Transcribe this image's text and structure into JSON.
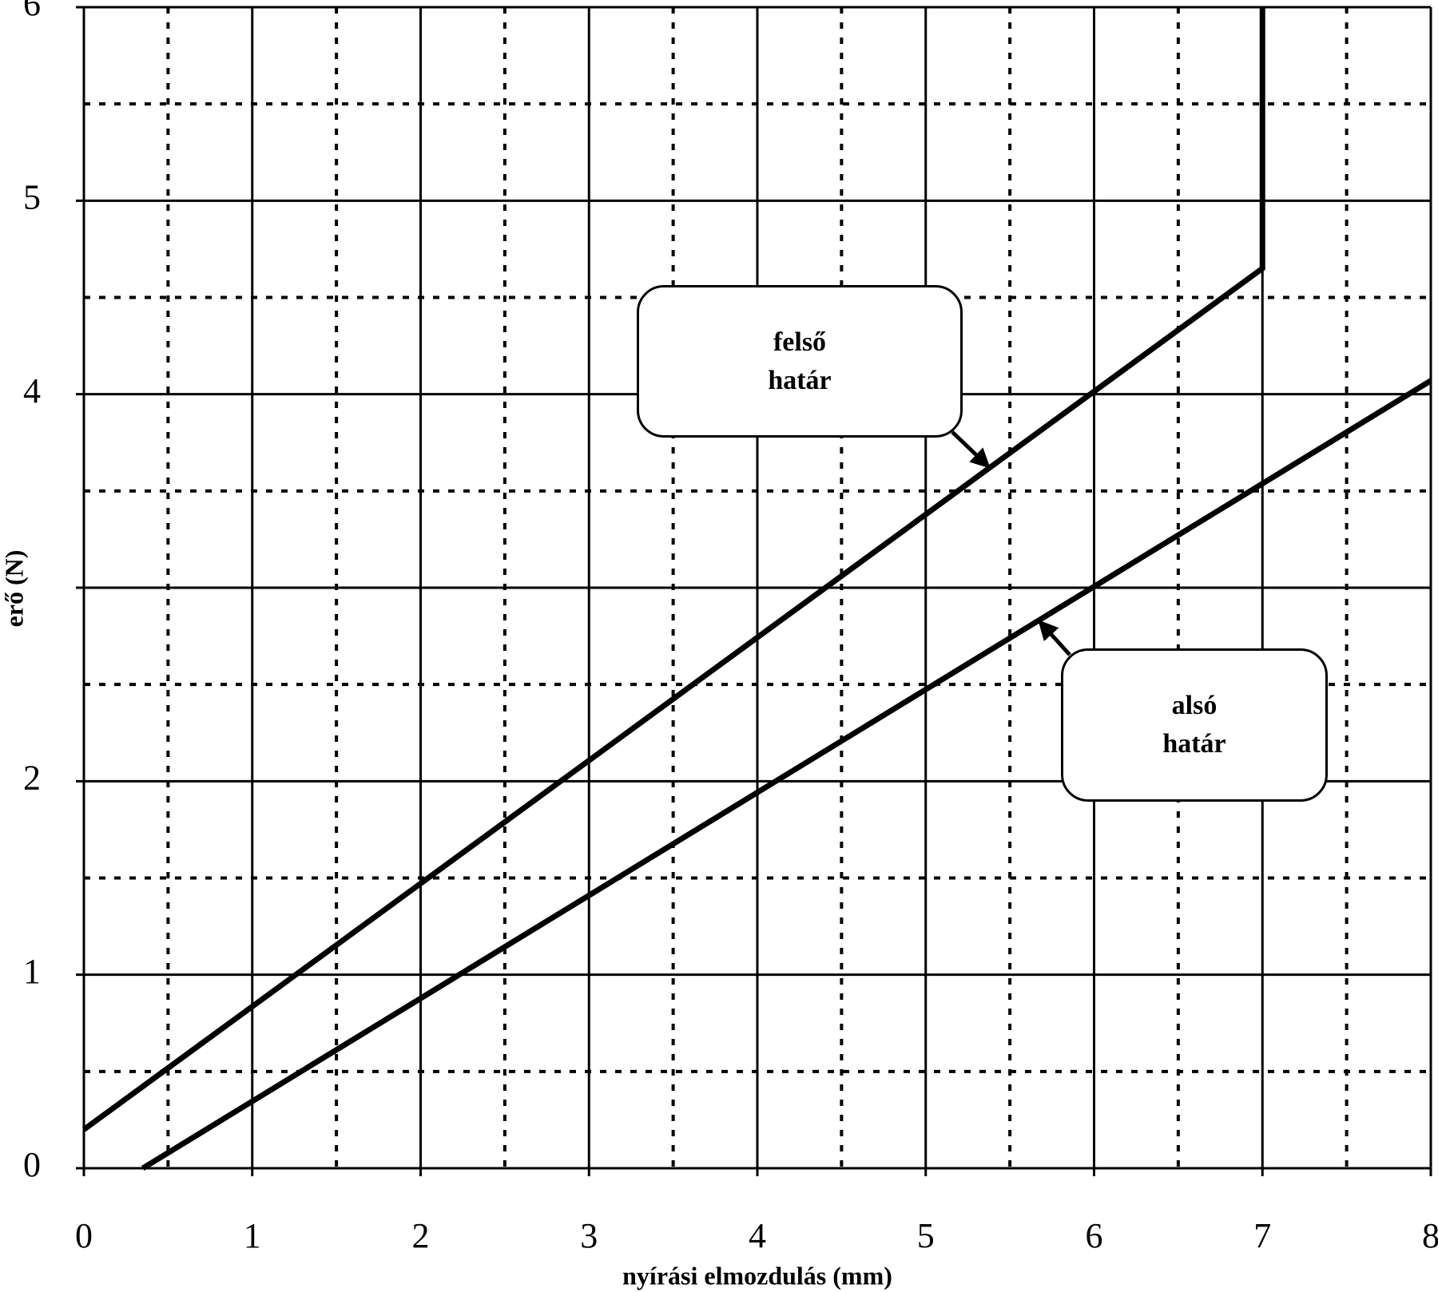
{
  "chart_data": {
    "type": "line",
    "x_label": "nyírási elmozdulás (mm)",
    "y_label": "erő (N)",
    "xlim": [
      0,
      8
    ],
    "ylim": [
      0,
      6
    ],
    "xticks": [
      0,
      1,
      2,
      3,
      4,
      5,
      6,
      7,
      8
    ],
    "yticks": [
      0,
      1,
      2,
      {
        "value": 3,
        "label": null
      },
      4,
      5,
      6
    ],
    "minor_xticks": [
      0.5,
      1.5,
      2.5,
      3.5,
      4.5,
      5.5,
      6.5,
      7.5
    ],
    "minor_yticks": [
      0.5,
      1.5,
      2.5,
      3.5,
      4.5,
      5.5
    ],
    "grid": true,
    "series": [
      {
        "color": "#000000",
        "x": [
          0,
          7,
          7
        ],
        "values": [
          0.2,
          4.65,
          6
        ]
      },
      {
        "color": "#000000",
        "x": [
          0.35,
          8
        ],
        "values": [
          0,
          4.07
        ]
      }
    ],
    "annotations": [
      {
        "text": "felső határ"
      },
      {
        "text": "alsó határ"
      }
    ]
  }
}
